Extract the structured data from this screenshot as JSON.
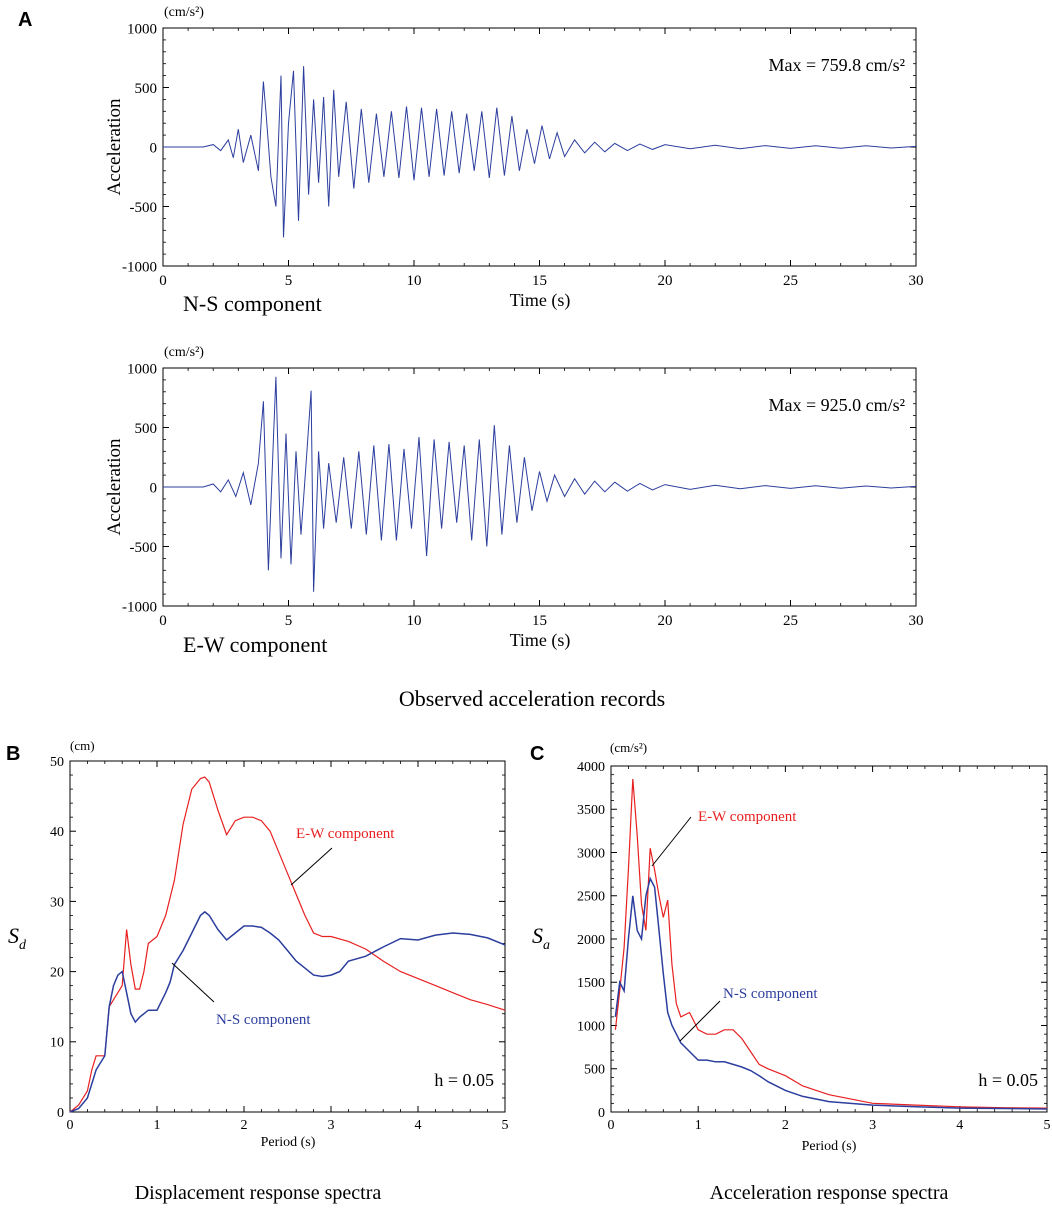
{
  "figure_labels": {
    "panel_a": "A",
    "panel_b": "B",
    "panel_c": "C",
    "caption_a": "Observed acceleration records",
    "caption_b": "Displacement response spectra",
    "caption_c": "Acceleration response spectra"
  },
  "colors": {
    "ns": "#2c3e9e",
    "ew": "#e82020",
    "axis": "#000000"
  },
  "chart_data": [
    {
      "id": "ns_record",
      "type": "line",
      "title": "",
      "unit_label": "(cm/s²)",
      "xlabel": "Time (s)",
      "ylabel": "Acceleration",
      "xlim": [
        0,
        30
      ],
      "ylim": [
        -1000,
        1000
      ],
      "xticks": [
        0,
        5,
        10,
        15,
        20,
        25,
        30
      ],
      "yticks": [
        -1000,
        -500,
        0,
        500,
        1000
      ],
      "annotation": "Max = 759.8 cm/s²",
      "component_label": "N-S component",
      "series": [
        {
          "name": "N-S",
          "color": "#2c3e9e",
          "x": [
            0,
            1.6,
            2.0,
            2.3,
            2.6,
            2.8,
            3.0,
            3.2,
            3.5,
            3.8,
            4.0,
            4.1,
            4.3,
            4.5,
            4.7,
            4.8,
            5.0,
            5.2,
            5.4,
            5.6,
            5.8,
            6.0,
            6.2,
            6.4,
            6.6,
            6.8,
            7.0,
            7.3,
            7.6,
            7.9,
            8.2,
            8.5,
            8.8,
            9.1,
            9.4,
            9.7,
            10.0,
            10.3,
            10.6,
            10.9,
            11.2,
            11.5,
            11.8,
            12.1,
            12.4,
            12.7,
            13.0,
            13.3,
            13.6,
            13.9,
            14.2,
            14.5,
            14.8,
            15.1,
            15.4,
            15.7,
            16.0,
            16.4,
            16.8,
            17.2,
            17.6,
            18.0,
            18.5,
            19.0,
            19.5,
            20.0,
            21.0,
            22.0,
            23.0,
            24.0,
            25.0,
            26.0,
            27.0,
            28.0,
            29.0,
            30.0
          ],
          "y": [
            0,
            0,
            20,
            -30,
            60,
            -90,
            150,
            -130,
            100,
            -200,
            550,
            300,
            -250,
            -500,
            600,
            -760,
            200,
            640,
            -620,
            680,
            -400,
            400,
            -300,
            420,
            -500,
            480,
            -250,
            380,
            -350,
            320,
            -300,
            280,
            -250,
            300,
            -260,
            340,
            -280,
            330,
            -250,
            320,
            -240,
            300,
            -220,
            280,
            -200,
            300,
            -260,
            330,
            -240,
            260,
            -200,
            150,
            -140,
            180,
            -100,
            120,
            -80,
            60,
            -50,
            40,
            -40,
            30,
            -30,
            25,
            -20,
            20,
            -15,
            15,
            -15,
            12,
            -12,
            10,
            -10,
            10,
            -8,
            5
          ]
        }
      ]
    },
    {
      "id": "ew_record",
      "type": "line",
      "title": "",
      "unit_label": "(cm/s²)",
      "xlabel": "Time (s)",
      "ylabel": "Acceleration",
      "xlim": [
        0,
        30
      ],
      "ylim": [
        -1000,
        1000
      ],
      "xticks": [
        0,
        5,
        10,
        15,
        20,
        25,
        30
      ],
      "yticks": [
        -1000,
        -500,
        0,
        500,
        1000
      ],
      "annotation": "Max = 925.0 cm/s²",
      "component_label": "E-W component",
      "series": [
        {
          "name": "E-W",
          "color": "#2c3e9e",
          "x": [
            0,
            1.6,
            2.0,
            2.3,
            2.6,
            2.9,
            3.2,
            3.5,
            3.8,
            4.0,
            4.2,
            4.4,
            4.5,
            4.7,
            4.9,
            5.1,
            5.3,
            5.5,
            5.7,
            5.9,
            6.0,
            6.2,
            6.4,
            6.6,
            6.9,
            7.2,
            7.5,
            7.8,
            8.1,
            8.4,
            8.7,
            9.0,
            9.3,
            9.6,
            9.9,
            10.2,
            10.5,
            10.8,
            11.1,
            11.4,
            11.7,
            12.0,
            12.3,
            12.6,
            12.9,
            13.2,
            13.5,
            13.8,
            14.1,
            14.4,
            14.7,
            15.0,
            15.3,
            15.6,
            16.0,
            16.4,
            16.8,
            17.2,
            17.6,
            18.0,
            18.5,
            19.0,
            19.5,
            20.0,
            21.0,
            22.0,
            23.0,
            24.0,
            25.0,
            26.0,
            27.0,
            28.0,
            29.0,
            30.0
          ],
          "y": [
            0,
            0,
            25,
            -40,
            60,
            -80,
            120,
            -150,
            200,
            720,
            -700,
            400,
            925,
            -600,
            450,
            -650,
            300,
            -400,
            200,
            810,
            -880,
            300,
            -350,
            200,
            -300,
            250,
            -350,
            300,
            -400,
            350,
            -450,
            360,
            -450,
            320,
            -350,
            420,
            -580,
            400,
            -350,
            380,
            -300,
            350,
            -450,
            400,
            -500,
            520,
            -400,
            350,
            -300,
            250,
            -200,
            130,
            -120,
            100,
            -80,
            70,
            -60,
            50,
            -40,
            40,
            -35,
            30,
            -25,
            20,
            -20,
            15,
            -15,
            12,
            -12,
            10,
            -10,
            8,
            -8,
            5
          ]
        }
      ]
    },
    {
      "id": "displacement_spectra",
      "type": "line",
      "title": "",
      "unit_label": "(cm)",
      "xlabel": "Period (s)",
      "ylabel": "S_d",
      "xlim": [
        0,
        5
      ],
      "ylim": [
        0,
        50
      ],
      "xticks": [
        0,
        1,
        2,
        3,
        4,
        5
      ],
      "yticks": [
        0,
        10,
        20,
        30,
        40,
        50
      ],
      "annotation": "h = 0.05",
      "series": [
        {
          "name": "E-W component",
          "color": "#e82020",
          "x": [
            0,
            0.1,
            0.2,
            0.25,
            0.3,
            0.4,
            0.45,
            0.5,
            0.6,
            0.65,
            0.7,
            0.75,
            0.8,
            0.85,
            0.9,
            1.0,
            1.1,
            1.2,
            1.3,
            1.4,
            1.5,
            1.55,
            1.6,
            1.7,
            1.8,
            1.9,
            2.0,
            2.1,
            2.2,
            2.3,
            2.4,
            2.5,
            2.6,
            2.7,
            2.8,
            2.9,
            3.0,
            3.2,
            3.4,
            3.6,
            3.8,
            4.0,
            4.2,
            4.4,
            4.6,
            4.8,
            5.0
          ],
          "y": [
            0,
            1,
            3,
            6,
            8,
            8,
            15,
            16,
            18,
            26,
            21,
            17.5,
            17.5,
            20,
            24,
            25,
            28,
            33,
            41,
            46,
            47.5,
            47.7,
            47,
            43,
            39.5,
            41.5,
            42,
            42,
            41.5,
            40,
            37,
            34,
            31,
            28,
            25.5,
            25,
            25,
            24.3,
            23.2,
            21.5,
            20,
            19,
            18,
            17,
            16,
            15.3,
            14.5
          ]
        },
        {
          "name": "N-S component",
          "color": "#2c3e9e",
          "x": [
            0,
            0.1,
            0.2,
            0.25,
            0.3,
            0.4,
            0.45,
            0.5,
            0.55,
            0.6,
            0.65,
            0.7,
            0.75,
            0.8,
            0.9,
            1.0,
            1.1,
            1.15,
            1.2,
            1.3,
            1.4,
            1.5,
            1.55,
            1.6,
            1.7,
            1.8,
            1.9,
            2.0,
            2.1,
            2.2,
            2.3,
            2.4,
            2.5,
            2.6,
            2.7,
            2.8,
            2.9,
            3.0,
            3.1,
            3.2,
            3.4,
            3.6,
            3.8,
            4.0,
            4.2,
            4.4,
            4.6,
            4.8,
            5.0
          ],
          "y": [
            0,
            0.5,
            2,
            4,
            6,
            8,
            15,
            18,
            19.5,
            20,
            17,
            14,
            12.8,
            13.5,
            14.5,
            14.5,
            17,
            18.5,
            21,
            23,
            25.5,
            28,
            28.5,
            28,
            26,
            24.5,
            25.5,
            26.5,
            26.5,
            26.3,
            25.5,
            24.5,
            23,
            21.5,
            20.5,
            19.5,
            19.3,
            19.5,
            20,
            21.5,
            22.2,
            23.5,
            24.7,
            24.5,
            25.2,
            25.5,
            25.3,
            24.8,
            23.8
          ]
        }
      ]
    },
    {
      "id": "acceleration_spectra",
      "type": "line",
      "title": "",
      "unit_label": "(cm/s²)",
      "xlabel": "Period (s)",
      "ylabel": "S_a",
      "xlim": [
        0,
        5
      ],
      "ylim": [
        0,
        4000
      ],
      "xticks": [
        0,
        1,
        2,
        3,
        4,
        5
      ],
      "yticks": [
        0,
        500,
        1000,
        1500,
        2000,
        2500,
        3000,
        3500,
        4000
      ],
      "annotation": "h = 0.05",
      "series": [
        {
          "name": "E-W component",
          "color": "#e82020",
          "x": [
            0.05,
            0.1,
            0.15,
            0.2,
            0.25,
            0.3,
            0.35,
            0.4,
            0.45,
            0.5,
            0.55,
            0.6,
            0.65,
            0.7,
            0.75,
            0.8,
            0.9,
            1.0,
            1.1,
            1.2,
            1.3,
            1.4,
            1.5,
            1.6,
            1.7,
            1.8,
            2.0,
            2.2,
            2.5,
            3.0,
            3.5,
            4.0,
            4.5,
            5.0
          ],
          "y": [
            950,
            1400,
            1900,
            2800,
            3850,
            3200,
            2400,
            2100,
            3050,
            2800,
            2500,
            2250,
            2450,
            1700,
            1250,
            1100,
            1150,
            950,
            900,
            900,
            950,
            950,
            850,
            700,
            550,
            500,
            420,
            300,
            200,
            100,
            80,
            60,
            50,
            45
          ]
        },
        {
          "name": "N-S component",
          "color": "#2c3e9e",
          "x": [
            0.05,
            0.1,
            0.15,
            0.2,
            0.25,
            0.3,
            0.35,
            0.4,
            0.45,
            0.5,
            0.55,
            0.6,
            0.65,
            0.7,
            0.75,
            0.8,
            0.9,
            1.0,
            1.1,
            1.2,
            1.3,
            1.4,
            1.5,
            1.6,
            1.7,
            1.8,
            2.0,
            2.2,
            2.5,
            3.0,
            3.5,
            4.0,
            4.5,
            5.0
          ],
          "y": [
            1100,
            1500,
            1400,
            2000,
            2500,
            2100,
            2000,
            2500,
            2700,
            2600,
            2100,
            1600,
            1150,
            1000,
            900,
            800,
            700,
            600,
            600,
            580,
            580,
            550,
            520,
            480,
            420,
            350,
            250,
            180,
            120,
            80,
            60,
            45,
            40,
            35
          ]
        }
      ]
    }
  ],
  "spectra_callouts": {
    "b_ew_label": "E-W component",
    "b_ns_label": "N-S component",
    "c_ew_label": "E-W component",
    "c_ns_label": "N-S component"
  }
}
